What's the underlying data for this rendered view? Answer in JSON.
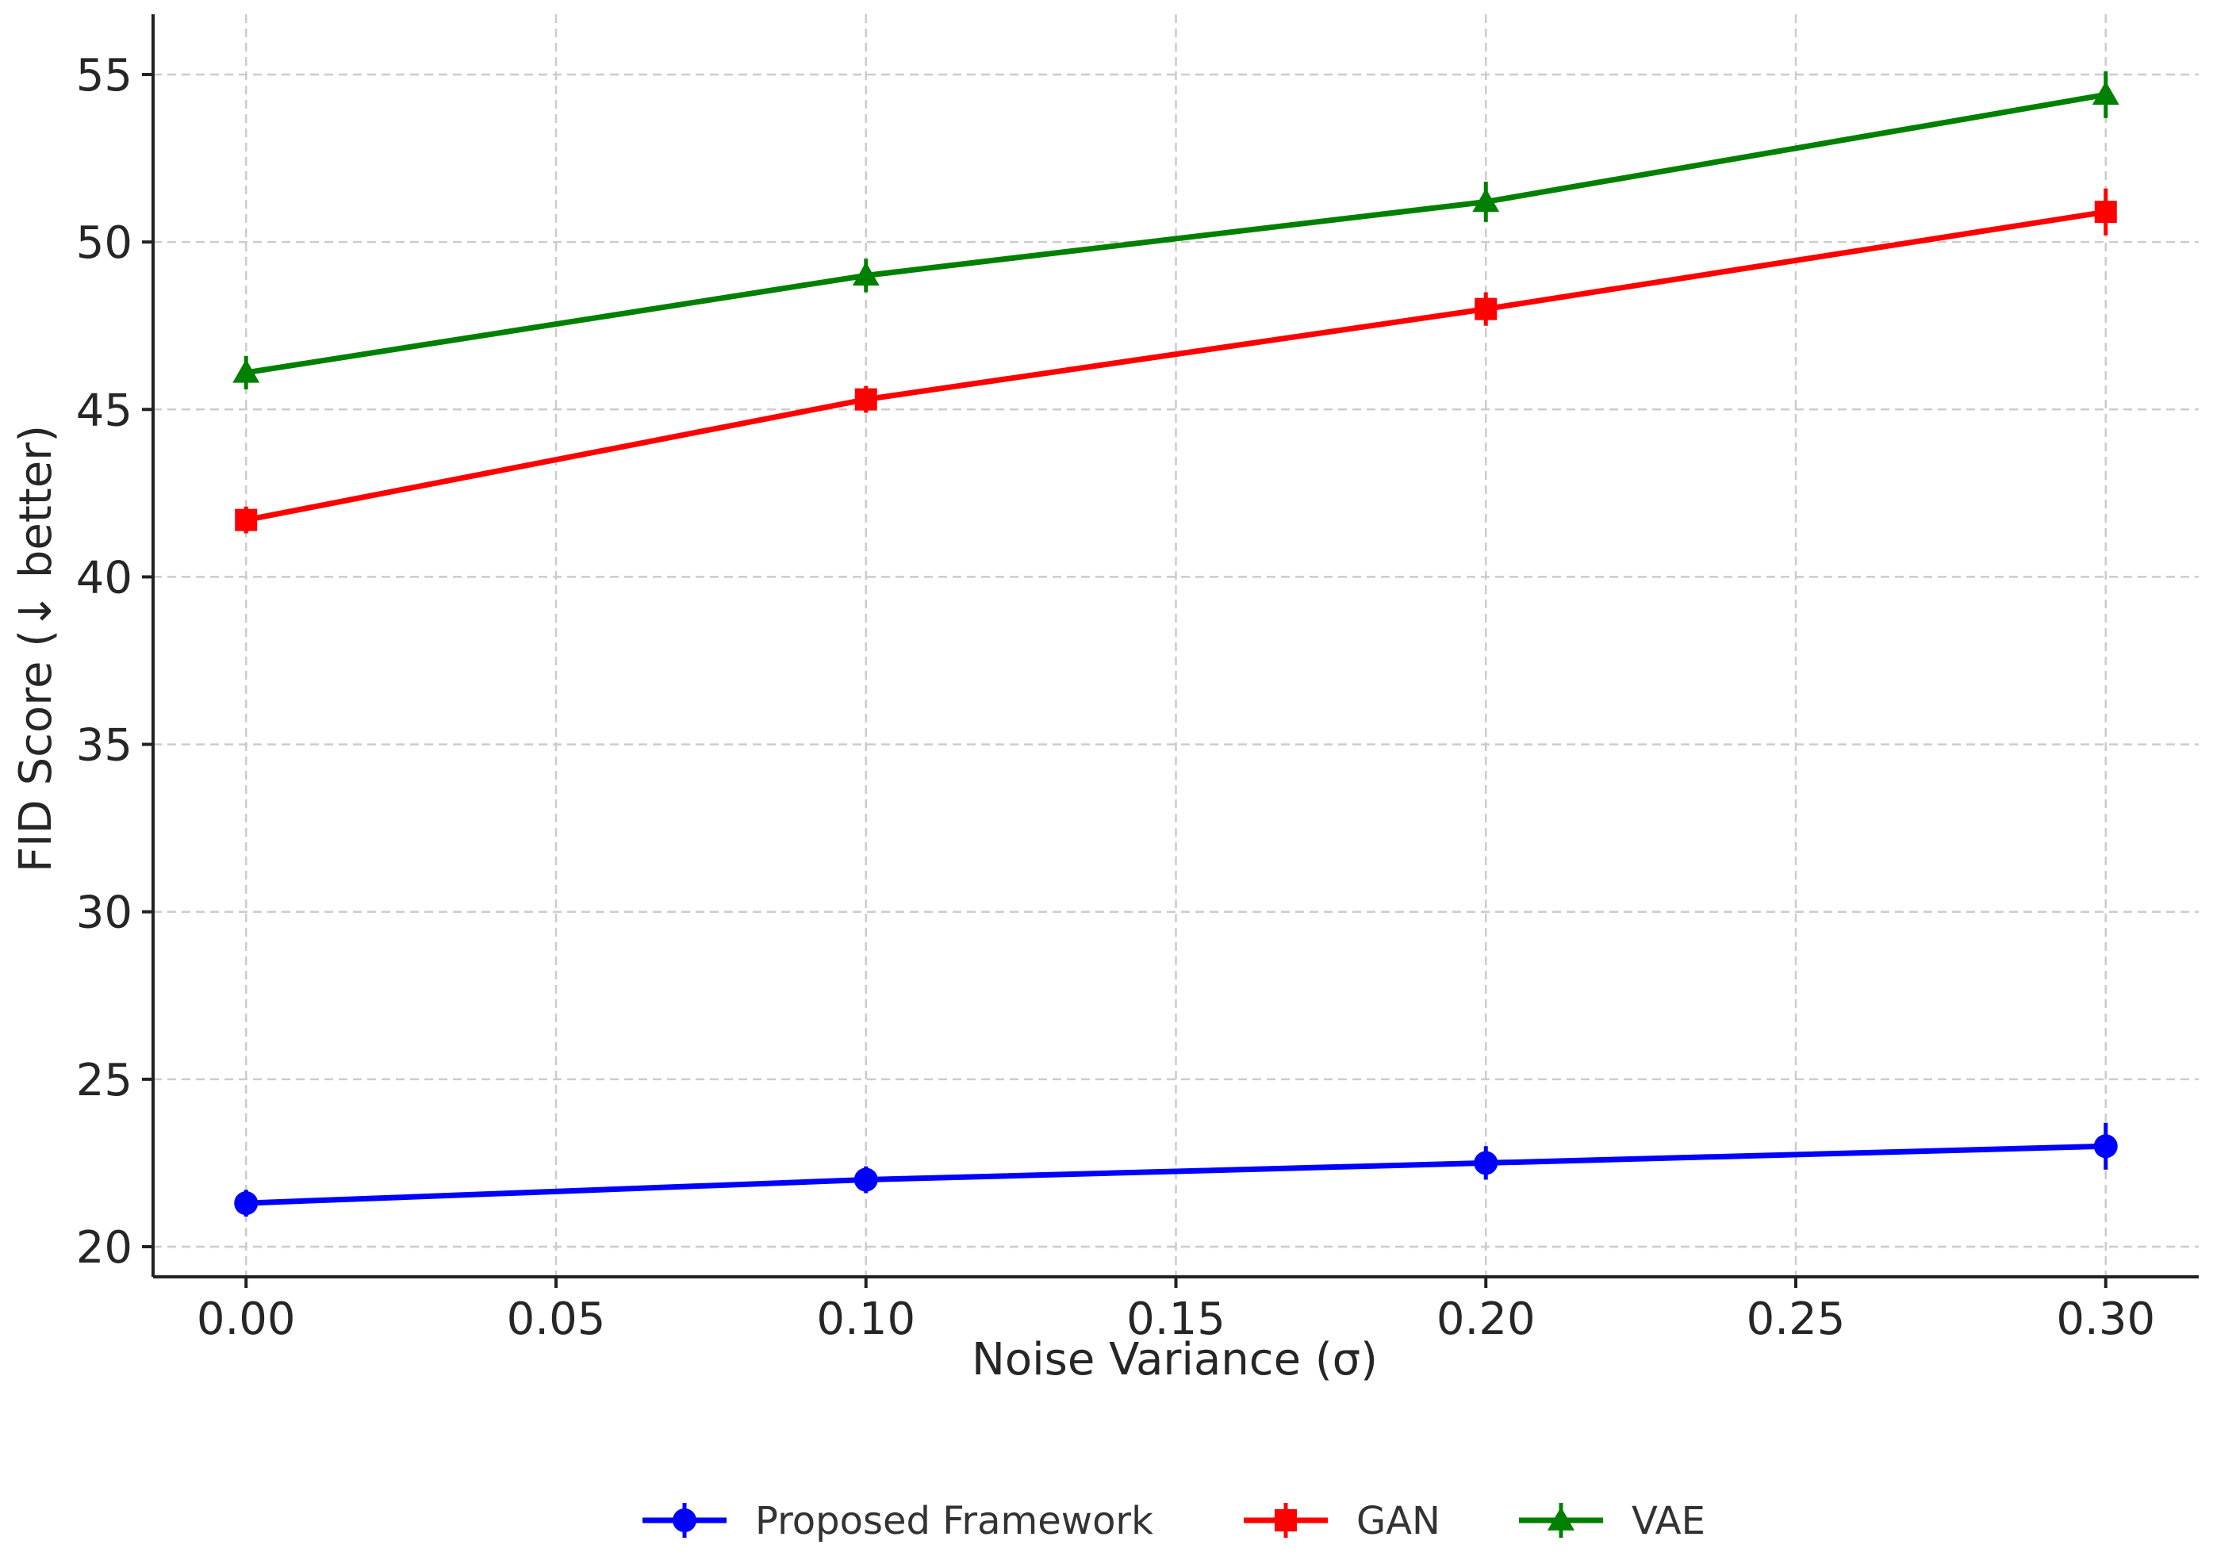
{
  "chart_data": {
    "type": "line",
    "title": "",
    "xlabel": "Noise Variance (σ)",
    "ylabel": "FID Score (↓ better)",
    "x": [
      0.0,
      0.1,
      0.2,
      0.3
    ],
    "xlim": [
      -0.015,
      0.315
    ],
    "ylim": [
      19.1,
      56.8
    ],
    "xticks": [
      0.0,
      0.05,
      0.1,
      0.15,
      0.2,
      0.25,
      0.3
    ],
    "xtick_labels": [
      "0.00",
      "0.05",
      "0.10",
      "0.15",
      "0.20",
      "0.25",
      "0.30"
    ],
    "yticks": [
      20,
      25,
      30,
      35,
      40,
      45,
      50,
      55
    ],
    "ytick_labels": [
      "20",
      "25",
      "30",
      "35",
      "40",
      "45",
      "50",
      "55"
    ],
    "grid": true,
    "legend_position": "bottom-center",
    "series": [
      {
        "name": "Proposed Framework",
        "color": "#0000ff",
        "marker": "circle",
        "values": [
          21.3,
          22.0,
          22.5,
          23.0
        ],
        "errors": [
          0.4,
          0.4,
          0.5,
          0.7
        ]
      },
      {
        "name": "GAN",
        "color": "#ff0000",
        "marker": "square",
        "values": [
          41.7,
          45.3,
          48.0,
          50.9
        ],
        "errors": [
          0.4,
          0.4,
          0.5,
          0.7
        ]
      },
      {
        "name": "VAE",
        "color": "#008000",
        "marker": "triangle",
        "values": [
          46.1,
          49.0,
          51.2,
          54.4
        ],
        "errors": [
          0.5,
          0.5,
          0.6,
          0.7
        ]
      }
    ]
  }
}
